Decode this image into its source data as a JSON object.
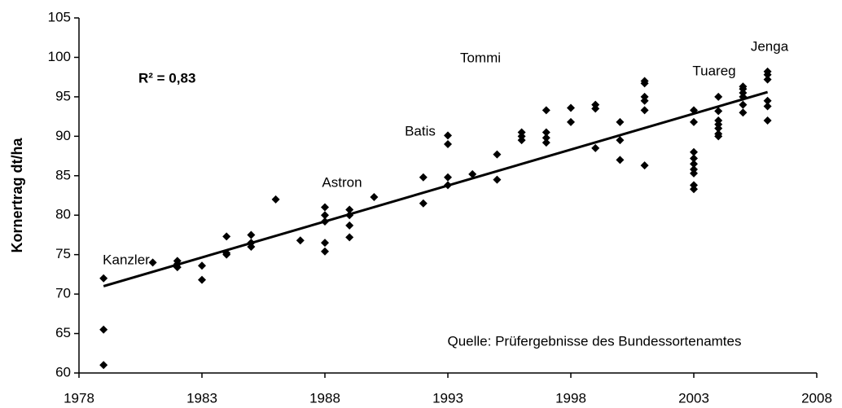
{
  "chart_data": {
    "type": "scatter",
    "y_label": "Kornertrag dt/ha",
    "xlim": [
      1978,
      2008
    ],
    "xticks": [
      1978,
      1983,
      1988,
      1993,
      1998,
      2003,
      2008
    ],
    "ylim": [
      60,
      105
    ],
    "yticks": [
      60,
      65,
      70,
      75,
      80,
      85,
      90,
      95,
      100,
      105
    ],
    "grid": false,
    "series": [
      {
        "color": "#000000",
        "x": [
          1979,
          1979,
          1979,
          1981,
          1982,
          1982,
          1982,
          1983,
          1983,
          1984,
          1984,
          1984,
          1985,
          1985,
          1985,
          1986,
          1987,
          1988,
          1988,
          1988,
          1988,
          1988,
          1989,
          1989,
          1989,
          1989,
          1990,
          1992,
          1992,
          1993,
          1993,
          1993,
          1993,
          1994,
          1995,
          1995,
          1996,
          1996,
          1996,
          1997,
          1997,
          1997,
          1997,
          1998,
          1998,
          1999,
          1999,
          1999,
          2000,
          2000,
          2000,
          2001,
          2001,
          2001,
          2001,
          2001,
          2001,
          2003,
          2003,
          2003,
          2003,
          2003,
          2003,
          2003,
          2003,
          2003,
          2004,
          2004,
          2004,
          2004,
          2004,
          2004,
          2004,
          2005,
          2005,
          2005,
          2005,
          2005,
          2005,
          2006,
          2006,
          2006,
          2006,
          2006,
          2006
        ],
        "values": [
          72,
          65.5,
          61,
          74,
          74.2,
          73.8,
          73.4,
          73.6,
          71.8,
          77.3,
          75.2,
          75,
          77.5,
          76.5,
          76,
          82,
          76.8,
          81,
          80,
          79.2,
          76.5,
          75.4,
          80.7,
          80,
          78.7,
          77.2,
          82.3,
          84.8,
          81.5,
          90.1,
          89,
          84.8,
          83.8,
          85.2,
          87.7,
          84.5,
          90.5,
          90,
          89.5,
          93.3,
          90.5,
          89.8,
          89.2,
          93.6,
          91.8,
          94,
          93.5,
          88.5,
          91.8,
          89.5,
          87,
          97,
          96.7,
          95,
          94.5,
          93.3,
          86.3,
          93.3,
          91.8,
          88,
          87.2,
          86.5,
          85.8,
          85.3,
          83.8,
          83.3,
          95,
          93.2,
          92,
          91.5,
          91,
          90.3,
          90,
          96.3,
          96,
          95.5,
          95,
          94,
          93,
          98.2,
          97.8,
          97.2,
          94.5,
          93.8,
          92
        ]
      }
    ],
    "trend": {
      "color": "#000000",
      "x": [
        1979,
        2006
      ],
      "values": [
        71,
        95.6
      ]
    },
    "annotations": [
      "R² = 0,83",
      "Kanzler",
      "Astron",
      "Batis",
      "Tommi",
      "Tuareg",
      "Jenga",
      "Quelle: Prüfergebnisse des Bundessortenamtes"
    ]
  }
}
